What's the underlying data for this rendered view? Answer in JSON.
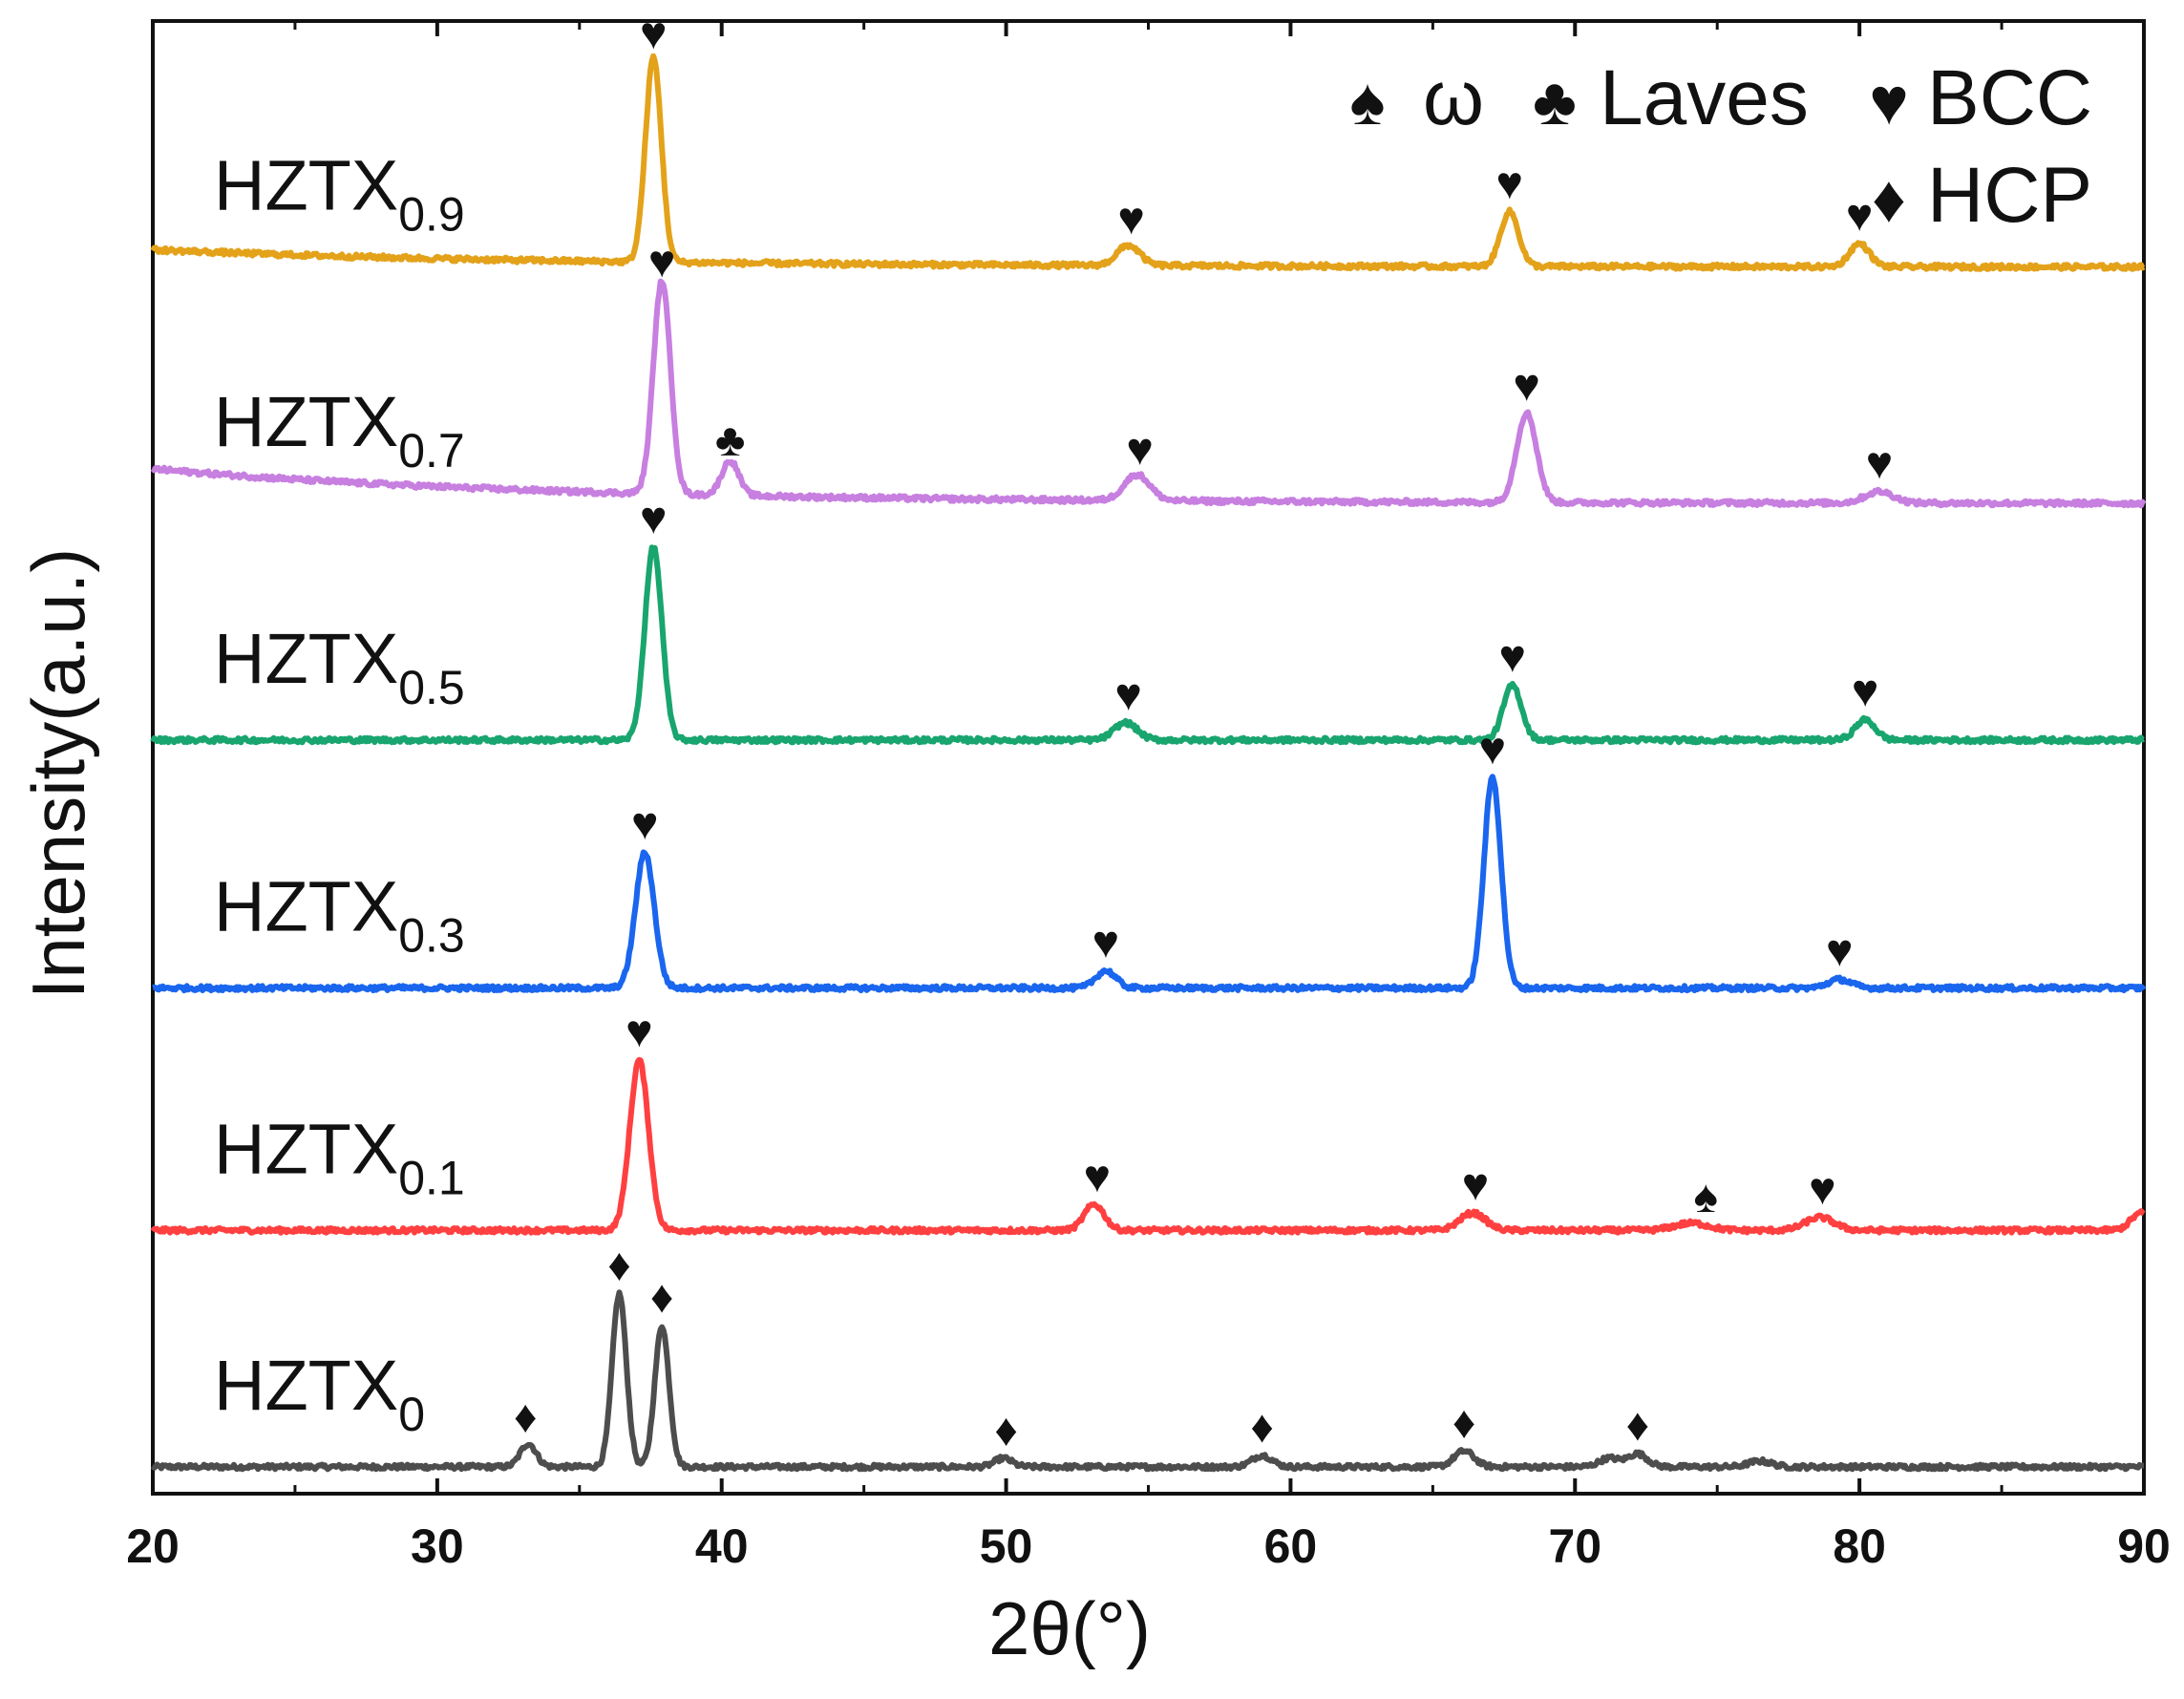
{
  "chart_data": {
    "type": "line",
    "title": "",
    "xlabel": "2θ(°)",
    "ylabel": "Intensity(a.u.)",
    "xlim": [
      20,
      90
    ],
    "xticks": [
      20,
      30,
      40,
      50,
      60,
      70,
      80,
      90
    ],
    "yticks": "none",
    "grid": false,
    "legend": {
      "placement": "top-right",
      "entries": [
        {
          "symbol": "♠",
          "label": "ω"
        },
        {
          "symbol": "♣",
          "label": "Laves"
        },
        {
          "symbol": "♥",
          "label": "BCC"
        },
        {
          "symbol": "♦",
          "label": "HCP"
        }
      ]
    },
    "series": [
      {
        "name": "HZTX0",
        "label_main": "HZTX",
        "label_sub": "0",
        "color": "#4d4d4d",
        "baseline": 0.4,
        "peaks": [
          {
            "x": 33.2,
            "h": 0.8,
            "w": 0.28
          },
          {
            "x": 36.4,
            "h": 6.0,
            "w": 0.25
          },
          {
            "x": 37.9,
            "h": 4.9,
            "w": 0.25
          },
          {
            "x": 49.9,
            "h": 0.3,
            "w": 0.3
          },
          {
            "x": 59.0,
            "h": 0.4,
            "w": 0.35
          },
          {
            "x": 66.1,
            "h": 0.55,
            "w": 0.35
          },
          {
            "x": 71.2,
            "h": 0.3,
            "w": 0.35
          },
          {
            "x": 72.2,
            "h": 0.45,
            "w": 0.35
          },
          {
            "x": 76.5,
            "h": 0.2,
            "w": 0.4
          }
        ],
        "markers": [
          {
            "x": 33.1,
            "symbol": "♦"
          },
          {
            "x": 36.4,
            "symbol": "♦"
          },
          {
            "x": 37.9,
            "symbol": "♦"
          },
          {
            "x": 50.0,
            "symbol": "♦"
          },
          {
            "x": 59.0,
            "symbol": "♦"
          },
          {
            "x": 66.1,
            "symbol": "♦"
          },
          {
            "x": 72.2,
            "symbol": "♦"
          }
        ]
      },
      {
        "name": "HZTX0.1",
        "label_main": "HZTX",
        "label_sub": "0.1",
        "color": "#ff4040",
        "baseline": 8.6,
        "peaks": [
          {
            "x": 37.1,
            "h": 5.9,
            "w": 0.33
          },
          {
            "x": 53.1,
            "h": 0.9,
            "w": 0.35
          },
          {
            "x": 66.4,
            "h": 0.6,
            "w": 0.45
          },
          {
            "x": 74.1,
            "h": 0.25,
            "w": 0.6
          },
          {
            "x": 78.6,
            "h": 0.45,
            "w": 0.5
          },
          {
            "x": 89.9,
            "h": 0.6,
            "w": 0.35
          }
        ],
        "markers": [
          {
            "x": 53.2,
            "symbol": "♥"
          },
          {
            "x": 66.5,
            "symbol": "♥"
          },
          {
            "x": 74.6,
            "symbol": "♠"
          },
          {
            "x": 78.7,
            "symbol": "♥"
          },
          {
            "x": 37.1,
            "symbol": "♥"
          }
        ]
      },
      {
        "name": "HZTX0.3",
        "label_main": "HZTX",
        "label_sub": "0.3",
        "color": "#1a66ee",
        "baseline": 17.0,
        "peaks": [
          {
            "x": 37.3,
            "h": 4.7,
            "w": 0.33
          },
          {
            "x": 53.5,
            "h": 0.6,
            "w": 0.35
          },
          {
            "x": 67.1,
            "h": 7.3,
            "w": 0.3
          },
          {
            "x": 79.3,
            "h": 0.3,
            "w": 0.4
          }
        ],
        "markers": [
          {
            "x": 37.3,
            "symbol": "♥"
          },
          {
            "x": 53.5,
            "symbol": "♥"
          },
          {
            "x": 67.1,
            "symbol": "♥"
          },
          {
            "x": 79.3,
            "symbol": "♥"
          }
        ]
      },
      {
        "name": "HZTX0.5",
        "label_main": "HZTX",
        "label_sub": "0.5",
        "color": "#19a56e",
        "baseline": 25.6,
        "peaks": [
          {
            "x": 37.6,
            "h": 6.7,
            "w": 0.3
          },
          {
            "x": 54.2,
            "h": 0.6,
            "w": 0.4
          },
          {
            "x": 67.8,
            "h": 1.9,
            "w": 0.32
          },
          {
            "x": 80.2,
            "h": 0.7,
            "w": 0.35
          }
        ],
        "markers": [
          {
            "x": 37.6,
            "symbol": "♥"
          },
          {
            "x": 54.3,
            "symbol": "♥"
          },
          {
            "x": 67.8,
            "symbol": "♥"
          },
          {
            "x": 80.2,
            "symbol": "♥"
          }
        ]
      },
      {
        "name": "HZTX0.7",
        "label_main": "HZTX",
        "label_sub": "0.7",
        "color": "#c77fe0",
        "baseline": 33.8,
        "drift": 1.2,
        "peaks": [
          {
            "x": 37.9,
            "h": 7.4,
            "w": 0.3
          },
          {
            "x": 40.3,
            "h": 1.2,
            "w": 0.3
          },
          {
            "x": 54.6,
            "h": 0.9,
            "w": 0.45
          },
          {
            "x": 68.3,
            "h": 3.1,
            "w": 0.35
          },
          {
            "x": 80.7,
            "h": 0.4,
            "w": 0.5
          }
        ],
        "markers": [
          {
            "x": 37.9,
            "symbol": "♥"
          },
          {
            "x": 40.3,
            "symbol": "♣"
          },
          {
            "x": 54.7,
            "symbol": "♥"
          },
          {
            "x": 68.3,
            "symbol": "♥"
          },
          {
            "x": 80.7,
            "symbol": "♥"
          }
        ]
      },
      {
        "name": "HZTX0.9",
        "label_main": "HZTX",
        "label_sub": "0.9",
        "color": "#e3a21a",
        "baseline": 42.0,
        "drift": 0.6,
        "peaks": [
          {
            "x": 37.6,
            "h": 7.1,
            "w": 0.28
          },
          {
            "x": 54.3,
            "h": 0.7,
            "w": 0.4
          },
          {
            "x": 67.7,
            "h": 1.9,
            "w": 0.32
          },
          {
            "x": 80.0,
            "h": 0.8,
            "w": 0.35
          }
        ],
        "markers": [
          {
            "x": 37.6,
            "symbol": "♥"
          },
          {
            "x": 54.4,
            "symbol": "♥"
          },
          {
            "x": 67.7,
            "symbol": "♥"
          },
          {
            "x": 80.0,
            "symbol": "♥"
          }
        ]
      }
    ]
  }
}
